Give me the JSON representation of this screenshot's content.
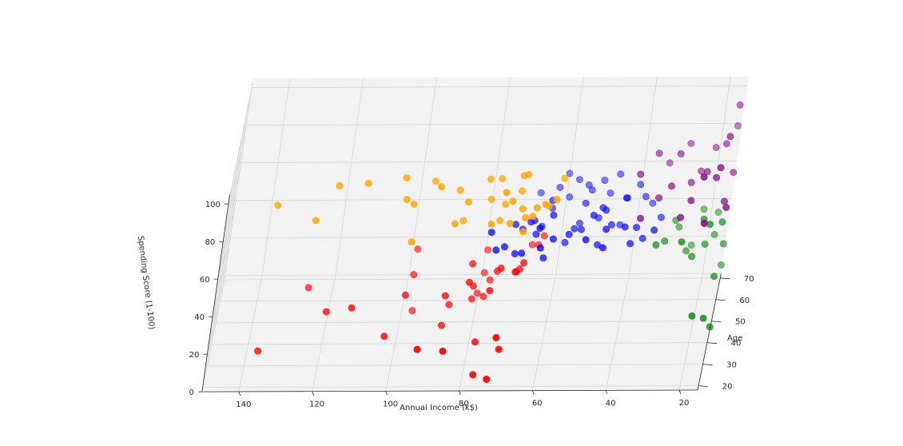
{
  "chart_data": {
    "type": "scatter",
    "view": "3d",
    "x_axis": {
      "label": "Annual Income (k$)",
      "ticks": [
        "140",
        "120",
        "100",
        "80",
        "60",
        "40",
        "20"
      ],
      "range": [
        140,
        15
      ]
    },
    "y_axis": {
      "label": "Age",
      "ticks": [
        "20",
        "30",
        "40",
        "50",
        "60",
        "70"
      ],
      "range": [
        18,
        72
      ]
    },
    "z_axis": {
      "label": "Spending Score (1-100)",
      "ticks": [
        "0",
        "20",
        "40",
        "60",
        "80",
        "100"
      ],
      "range": [
        0,
        100
      ]
    },
    "grid": true,
    "legend": "none",
    "colors": {
      "red": "#ff0000",
      "blue": "#0000ff",
      "orange": "#ffa500",
      "purple": "#800080",
      "green": "#008000"
    },
    "series": [
      {
        "color": "orange",
        "points": [
          [
            137,
            33,
            82
          ],
          [
            126,
            32,
            75
          ],
          [
            121,
            35,
            90
          ],
          [
            113,
            30,
            97
          ],
          [
            103,
            35,
            94
          ],
          [
            102,
            32,
            86
          ],
          [
            100,
            35,
            80
          ],
          [
            99,
            28,
            68
          ],
          [
            95,
            37,
            90
          ],
          [
            93,
            30,
            95
          ],
          [
            88,
            38,
            84
          ],
          [
            88,
            32,
            73
          ],
          [
            86,
            36,
            70
          ],
          [
            85,
            29,
            88
          ],
          [
            80,
            36,
            92
          ],
          [
            79,
            32,
            86
          ],
          [
            78,
            30,
            75
          ],
          [
            77,
            38,
            90
          ],
          [
            76,
            36,
            70
          ],
          [
            75,
            29,
            93
          ],
          [
            75,
            34,
            81
          ],
          [
            73,
            32,
            73
          ],
          [
            73,
            31,
            86
          ],
          [
            71,
            35,
            95
          ],
          [
            71,
            34,
            88
          ],
          [
            70,
            30,
            83
          ],
          [
            70,
            39,
            91
          ],
          [
            69,
            29,
            72
          ],
          [
            69,
            32,
            76
          ],
          [
            67,
            30,
            79
          ],
          [
            66,
            27,
            87
          ],
          [
            64,
            33,
            82
          ],
          [
            63,
            33,
            81
          ],
          [
            61,
            30,
            88
          ],
          [
            60,
            38,
            90
          ]
        ]
      },
      {
        "color": "red",
        "points": [
          [
            137,
            36,
            1
          ],
          [
            126,
            47,
            22
          ],
          [
            120,
            41,
            16
          ],
          [
            113,
            34,
            26
          ],
          [
            103,
            33,
            12
          ],
          [
            99,
            39,
            27
          ],
          [
            98,
            52,
            23
          ],
          [
            98,
            56,
            32
          ],
          [
            97,
            51,
            5
          ],
          [
            93,
            19,
            21
          ],
          [
            88,
            36,
            30
          ],
          [
            88,
            38,
            12
          ],
          [
            87,
            45,
            15
          ],
          [
            86,
            19,
            20
          ],
          [
            82,
            43,
            39
          ],
          [
            82,
            37,
            36
          ],
          [
            81,
            45,
            18
          ],
          [
            81,
            44,
            26
          ],
          [
            80,
            52,
            13
          ],
          [
            79,
            58,
            17
          ],
          [
            79,
            59,
            28
          ],
          [
            78,
            32,
            10
          ],
          [
            78,
            47,
            17
          ],
          [
            77,
            22,
            4
          ],
          [
            77,
            52,
            20
          ],
          [
            76,
            34,
            35
          ],
          [
            75,
            43,
            35
          ],
          [
            74,
            40,
            40
          ],
          [
            73,
            19,
            5
          ],
          [
            72,
            20,
            26
          ],
          [
            71,
            25,
            14
          ],
          [
            70,
            40,
            38
          ],
          [
            70,
            48,
            29
          ],
          [
            69,
            44,
            35
          ],
          [
            68,
            39,
            44
          ],
          [
            67,
            57,
            33
          ],
          [
            65,
            50,
            41
          ],
          [
            64,
            55,
            40
          ]
        ]
      },
      {
        "color": "blue",
        "points": [
          [
            78,
            41,
            58
          ],
          [
            76,
            38,
            52
          ],
          [
            74,
            43,
            48
          ],
          [
            72,
            49,
            53
          ],
          [
            71,
            45,
            42
          ],
          [
            70,
            52,
            47
          ],
          [
            69,
            40,
            48
          ],
          [
            68,
            51,
            52
          ],
          [
            67,
            49,
            55
          ],
          [
            67,
            68,
            48
          ],
          [
            66,
            47,
            50
          ],
          [
            65,
            42,
            59
          ],
          [
            65,
            55,
            45
          ],
          [
            64,
            38,
            53
          ],
          [
            63,
            54,
            60
          ],
          [
            63,
            43,
            42
          ],
          [
            63,
            60,
            49
          ],
          [
            62,
            48,
            59
          ],
          [
            62,
            67,
            52
          ],
          [
            61,
            43,
            52
          ],
          [
            60,
            70,
            56
          ],
          [
            59,
            66,
            48
          ],
          [
            58,
            51,
            41
          ],
          [
            57,
            46,
            51
          ],
          [
            57,
            68,
            55
          ],
          [
            56,
            53,
            46
          ],
          [
            55,
            59,
            42
          ],
          [
            54,
            50,
            49
          ],
          [
            54,
            62,
            59
          ],
          [
            54,
            57,
            55
          ],
          [
            53,
            64,
            54
          ],
          [
            52,
            40,
            55
          ],
          [
            51,
            47,
            60
          ],
          [
            50,
            65,
            58
          ],
          [
            50,
            58,
            46
          ],
          [
            49,
            49,
            42
          ],
          [
            49,
            54,
            56
          ],
          [
            48,
            52,
            57
          ],
          [
            48,
            66,
            50
          ],
          [
            47,
            44,
            56
          ],
          [
            47,
            38,
            53
          ],
          [
            46,
            53,
            48
          ],
          [
            46,
            67,
            59
          ],
          [
            44,
            60,
            40
          ],
          [
            43,
            55,
            60
          ],
          [
            43,
            62,
            52
          ],
          [
            42,
            45,
            56
          ],
          [
            40,
            46,
            46
          ],
          [
            40,
            63,
            58
          ],
          [
            39,
            50,
            50
          ],
          [
            38,
            60,
            55
          ],
          [
            37,
            51,
            43
          ],
          [
            36,
            63,
            48
          ],
          [
            34,
            47,
            52
          ],
          [
            33,
            59,
            45
          ]
        ]
      },
      {
        "color": "purple",
        "points": [
          [
            40,
            52,
            76
          ],
          [
            38,
            42,
            64
          ],
          [
            36,
            60,
            78
          ],
          [
            34,
            48,
            68
          ],
          [
            33,
            66,
            66
          ],
          [
            31,
            50,
            72
          ],
          [
            30,
            58,
            80
          ],
          [
            28,
            68,
            74
          ],
          [
            27,
            38,
            69
          ],
          [
            26,
            56,
            67
          ],
          [
            25,
            45,
            70
          ],
          [
            24,
            63,
            65
          ],
          [
            22,
            54,
            75
          ],
          [
            22,
            35,
            94
          ],
          [
            21,
            67,
            73
          ],
          [
            20,
            30,
            75
          ],
          [
            19,
            46,
            81
          ],
          [
            18,
            60,
            83
          ],
          [
            18,
            41,
            92
          ],
          [
            17,
            52,
            96
          ],
          [
            16,
            64,
            99
          ],
          [
            16,
            48,
            66
          ],
          [
            15,
            58,
            70
          ],
          [
            15,
            40,
            72
          ],
          [
            16,
            70,
            81
          ]
        ]
      },
      {
        "color": "green",
        "points": [
          [
            33,
            48,
            43
          ],
          [
            31,
            55,
            37
          ],
          [
            29,
            62,
            40
          ],
          [
            28,
            65,
            33
          ],
          [
            26,
            45,
            48
          ],
          [
            25,
            60,
            26
          ],
          [
            24,
            67,
            21
          ],
          [
            23,
            53,
            31
          ],
          [
            22,
            68,
            39
          ],
          [
            21,
            52,
            52
          ],
          [
            20,
            35,
            20
          ],
          [
            20,
            57,
            33
          ],
          [
            19,
            47,
            55
          ],
          [
            18,
            64,
            30
          ],
          [
            18,
            70,
            35
          ],
          [
            17,
            40,
            13
          ],
          [
            16,
            55,
            47
          ],
          [
            16,
            49,
            25
          ],
          [
            15,
            63,
            15
          ],
          [
            15,
            58,
            32
          ],
          [
            15,
            43,
            5
          ]
        ]
      }
    ]
  }
}
